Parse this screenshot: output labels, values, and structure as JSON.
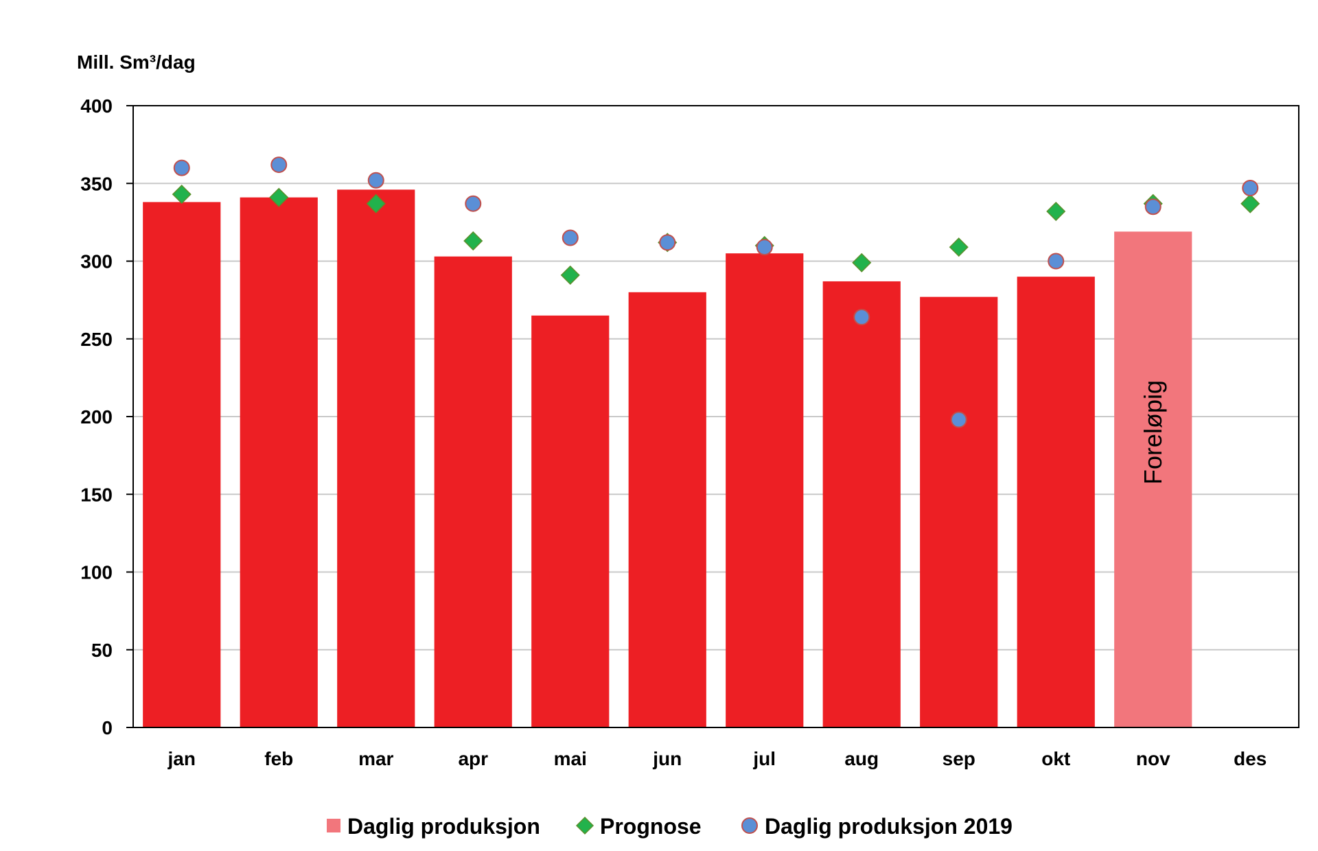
{
  "chart_data": {
    "type": "bar",
    "ylabel": "Mill. Sm³/dag",
    "ylim": [
      0,
      400
    ],
    "yticks": [
      0,
      50,
      100,
      150,
      200,
      250,
      300,
      350,
      400
    ],
    "grid": true,
    "legend_position": "bottom",
    "categories": [
      "jan",
      "feb",
      "mar",
      "apr",
      "mai",
      "jun",
      "jul",
      "aug",
      "sep",
      "okt",
      "nov",
      "des"
    ],
    "series": [
      {
        "name": "Daglig produksjon",
        "type": "bar",
        "color": "#ED1F24",
        "preliminary_color": "#F2767C",
        "values": [
          338,
          341,
          346,
          303,
          265,
          280,
          305,
          287,
          277,
          290,
          319,
          null
        ]
      },
      {
        "name": "Prognose",
        "type": "marker-diamond",
        "color": "#22B24C",
        "values": [
          343,
          341,
          337,
          313,
          291,
          312,
          310,
          299,
          309,
          332,
          337,
          337
        ]
      },
      {
        "name": "Daglig produksjon 2019",
        "type": "marker-circle",
        "color": "#5B8FD6",
        "values": [
          360,
          362,
          352,
          337,
          315,
          312,
          309,
          264,
          198,
          300,
          335,
          347
        ]
      }
    ],
    "annotations": [
      {
        "category": "nov",
        "text": "Foreløpig"
      }
    ],
    "preliminary_category": "nov"
  }
}
